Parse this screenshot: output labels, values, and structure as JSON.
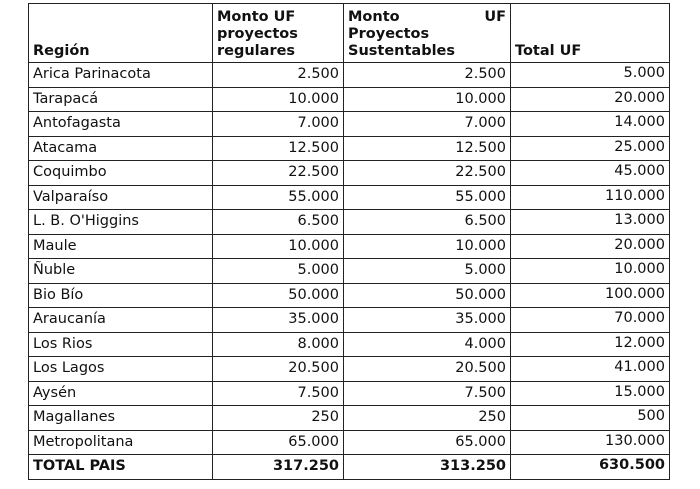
{
  "headers": {
    "region": "Región",
    "regular": "Monto UF proyectos regulares",
    "regular_lines": [
      "Monto UF",
      "proyectos",
      "regulares"
    ],
    "sustainable_w1": "Monto",
    "sustainable_w2": "UF",
    "sustainable_lines": [
      "Proyectos",
      "Sustentables"
    ],
    "total": "Total UF"
  },
  "rows": [
    {
      "region": "Arica Parinacota",
      "regular": "2.500",
      "sustainable": "2.500",
      "total": "5.000"
    },
    {
      "region": "Tarapacá",
      "regular": "10.000",
      "sustainable": "10.000",
      "total": "20.000"
    },
    {
      "region": "Antofagasta",
      "regular": "7.000",
      "sustainable": "7.000",
      "total": "14.000"
    },
    {
      "region": "Atacama",
      "regular": "12.500",
      "sustainable": "12.500",
      "total": "25.000"
    },
    {
      "region": "Coquimbo",
      "regular": "22.500",
      "sustainable": "22.500",
      "total": "45.000"
    },
    {
      "region": "Valparaíso",
      "regular": "55.000",
      "sustainable": "55.000",
      "total": "110.000"
    },
    {
      "region": "L. B. O'Higgins",
      "regular": "6.500",
      "sustainable": "6.500",
      "total": "13.000"
    },
    {
      "region": "Maule",
      "regular": "10.000",
      "sustainable": "10.000",
      "total": "20.000"
    },
    {
      "region": "Ñuble",
      "regular": "5.000",
      "sustainable": "5.000",
      "total": "10.000"
    },
    {
      "region": "Bio Bío",
      "regular": "50.000",
      "sustainable": "50.000",
      "total": "100.000"
    },
    {
      "region": "Araucanía",
      "regular": "35.000",
      "sustainable": "35.000",
      "total": "70.000"
    },
    {
      "region": "Los Rios",
      "regular": "8.000",
      "sustainable": "4.000",
      "total": "12.000"
    },
    {
      "region": "Los Lagos",
      "regular": "20.500",
      "sustainable": "20.500",
      "total": "41.000"
    },
    {
      "region": "Aysén",
      "regular": "7.500",
      "sustainable": "7.500",
      "total": "15.000"
    },
    {
      "region": "Magallanes",
      "regular": "250",
      "sustainable": "250",
      "total": "500"
    },
    {
      "region": "Metropolitana",
      "regular": "65.000",
      "sustainable": "65.000",
      "total": "130.000"
    }
  ],
  "total_row": {
    "region": "TOTAL PAIS",
    "regular": "317.250",
    "sustainable": "313.250",
    "total": "630.500"
  }
}
